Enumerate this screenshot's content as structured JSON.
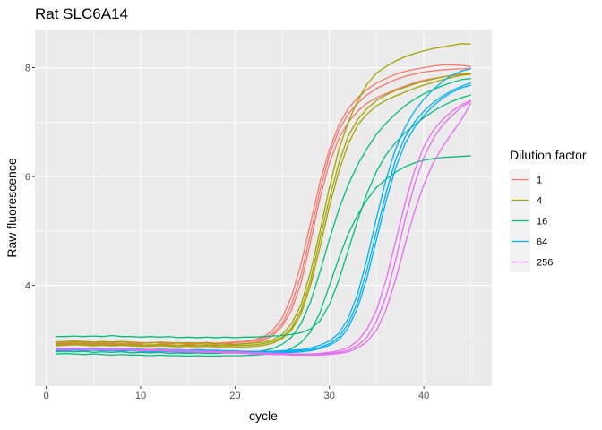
{
  "chart_data": {
    "type": "line",
    "title": "Rat SLC6A14",
    "xlabel": "cycle",
    "ylabel": "Raw fluorescence",
    "xlim": [
      -1.2,
      47.2
    ],
    "ylim": [
      2.15,
      8.7
    ],
    "x_ticks": [
      0,
      10,
      20,
      30,
      40
    ],
    "y_ticks": [
      4,
      6,
      8
    ],
    "grid": true,
    "legend": {
      "title": "Dilution factor",
      "position": "right",
      "entries": [
        {
          "label": "1",
          "color": "#F8766D"
        },
        {
          "label": "4",
          "color": "#A3A500"
        },
        {
          "label": "16",
          "color": "#00BF7D"
        },
        {
          "label": "64",
          "color": "#00B0F6"
        },
        {
          "label": "256",
          "color": "#E76BF3"
        }
      ]
    },
    "series": [
      {
        "group": "1",
        "color": "#F8766D",
        "values": [
          2.93,
          2.94,
          2.96,
          2.95,
          2.93,
          2.95,
          2.94,
          2.96,
          2.94,
          2.93,
          2.95,
          2.94,
          2.93,
          2.94,
          2.92,
          2.93,
          2.94,
          2.92,
          2.93,
          2.95,
          2.96,
          2.98,
          3.02,
          3.12,
          3.3,
          3.65,
          4.2,
          4.95,
          5.75,
          6.4,
          6.85,
          7.15,
          7.35,
          7.5,
          7.62,
          7.7,
          7.78,
          7.84,
          7.88,
          7.92,
          7.94,
          7.96,
          7.97,
          7.98,
          7.99
        ]
      },
      {
        "group": "1",
        "color": "#F8766D",
        "values": [
          2.95,
          2.96,
          2.97,
          2.96,
          2.95,
          2.96,
          2.95,
          2.96,
          2.95,
          2.94,
          2.95,
          2.95,
          2.94,
          2.95,
          2.94,
          2.94,
          2.95,
          2.94,
          2.95,
          2.96,
          2.97,
          3.0,
          3.05,
          3.18,
          3.4,
          3.8,
          4.4,
          5.15,
          5.9,
          6.5,
          6.95,
          7.25,
          7.45,
          7.6,
          7.72,
          7.8,
          7.88,
          7.93,
          7.97,
          8.0,
          8.03,
          8.05,
          8.05,
          8.04,
          8.02
        ]
      },
      {
        "group": "1",
        "color": "#F8766D",
        "values": [
          2.9,
          2.91,
          2.92,
          2.91,
          2.9,
          2.91,
          2.9,
          2.92,
          2.91,
          2.9,
          2.91,
          2.9,
          2.89,
          2.9,
          2.89,
          2.9,
          2.9,
          2.89,
          2.9,
          2.91,
          2.93,
          2.95,
          2.99,
          3.08,
          3.25,
          3.55,
          4.05,
          4.8,
          5.6,
          6.25,
          6.7,
          7.0,
          7.2,
          7.35,
          7.45,
          7.52,
          7.6,
          7.66,
          7.72,
          7.77,
          7.8,
          7.83,
          7.85,
          7.87,
          7.88
        ]
      },
      {
        "group": "4",
        "color": "#A3A500",
        "values": [
          2.96,
          2.97,
          2.98,
          2.97,
          2.96,
          2.97,
          2.96,
          2.97,
          2.96,
          2.95,
          2.94,
          2.96,
          2.95,
          2.94,
          2.95,
          2.94,
          2.95,
          2.93,
          2.92,
          2.92,
          2.93,
          2.94,
          2.96,
          3.0,
          3.1,
          3.3,
          3.65,
          4.25,
          5.0,
          5.8,
          6.5,
          7.0,
          7.4,
          7.7,
          7.9,
          8.02,
          8.12,
          8.2,
          8.26,
          8.31,
          8.35,
          8.38,
          8.41,
          8.44,
          8.43
        ]
      },
      {
        "group": "4",
        "color": "#A3A500",
        "values": [
          2.92,
          2.93,
          2.94,
          2.93,
          2.92,
          2.93,
          2.92,
          2.93,
          2.92,
          2.91,
          2.9,
          2.92,
          2.91,
          2.9,
          2.91,
          2.9,
          2.91,
          2.9,
          2.89,
          2.89,
          2.9,
          2.91,
          2.93,
          2.97,
          3.05,
          3.22,
          3.55,
          4.1,
          4.85,
          5.6,
          6.25,
          6.75,
          7.05,
          7.25,
          7.4,
          7.5,
          7.58,
          7.64,
          7.7,
          7.75,
          7.79,
          7.83,
          7.86,
          7.89,
          7.9
        ]
      },
      {
        "group": "4",
        "color": "#A3A500",
        "values": [
          2.89,
          2.9,
          2.91,
          2.9,
          2.89,
          2.9,
          2.89,
          2.9,
          2.89,
          2.88,
          2.88,
          2.89,
          2.88,
          2.87,
          2.88,
          2.87,
          2.88,
          2.87,
          2.86,
          2.86,
          2.87,
          2.88,
          2.9,
          2.94,
          3.02,
          3.18,
          3.48,
          4.0,
          4.7,
          5.45,
          6.1,
          6.6,
          6.95,
          7.15,
          7.3,
          7.4,
          7.48,
          7.55,
          7.62,
          7.68,
          7.73,
          7.78,
          7.82,
          7.86,
          7.88
        ]
      },
      {
        "group": "16",
        "color": "#00BF7D",
        "values": [
          3.06,
          3.06,
          3.07,
          3.06,
          3.07,
          3.06,
          3.08,
          3.06,
          3.06,
          3.05,
          3.06,
          3.05,
          3.06,
          3.04,
          3.05,
          3.04,
          3.05,
          3.04,
          3.05,
          3.04,
          3.05,
          3.05,
          3.06,
          3.07,
          3.08,
          3.1,
          3.13,
          3.2,
          3.35,
          3.65,
          4.1,
          4.65,
          5.2,
          5.7,
          6.1,
          6.4,
          6.62,
          6.8,
          6.95,
          7.08,
          7.2,
          7.3,
          7.38,
          7.45,
          7.5
        ]
      },
      {
        "group": "16",
        "color": "#00BF7D",
        "values": [
          2.78,
          2.79,
          2.78,
          2.79,
          2.77,
          2.78,
          2.77,
          2.78,
          2.76,
          2.77,
          2.76,
          2.77,
          2.75,
          2.76,
          2.75,
          2.76,
          2.75,
          2.75,
          2.76,
          2.76,
          2.77,
          2.78,
          2.8,
          2.84,
          2.92,
          3.05,
          3.3,
          3.7,
          4.25,
          4.85,
          5.4,
          5.85,
          6.22,
          6.52,
          6.78,
          6.98,
          7.15,
          7.3,
          7.42,
          7.52,
          7.6,
          7.67,
          7.73,
          7.78,
          7.8
        ]
      },
      {
        "group": "16",
        "color": "#00BF7D",
        "values": [
          2.74,
          2.75,
          2.74,
          2.73,
          2.74,
          2.73,
          2.72,
          2.73,
          2.72,
          2.72,
          2.71,
          2.72,
          2.71,
          2.71,
          2.7,
          2.71,
          2.7,
          2.7,
          2.71,
          2.71,
          2.71,
          2.72,
          2.73,
          2.75,
          2.78,
          2.84,
          2.95,
          3.15,
          3.5,
          4.0,
          4.5,
          4.95,
          5.3,
          5.58,
          5.8,
          5.95,
          6.08,
          6.18,
          6.25,
          6.3,
          6.33,
          6.35,
          6.36,
          6.37,
          6.38
        ]
      },
      {
        "group": "64",
        "color": "#00B0F6",
        "values": [
          2.84,
          2.84,
          2.85,
          2.84,
          2.85,
          2.84,
          2.84,
          2.83,
          2.84,
          2.83,
          2.82,
          2.83,
          2.82,
          2.82,
          2.81,
          2.82,
          2.81,
          2.81,
          2.8,
          2.8,
          2.79,
          2.79,
          2.79,
          2.79,
          2.8,
          2.81,
          2.82,
          2.85,
          2.9,
          2.98,
          3.12,
          3.4,
          3.85,
          4.5,
          5.25,
          5.95,
          6.5,
          6.9,
          7.2,
          7.42,
          7.6,
          7.75,
          7.86,
          7.94,
          7.98
        ]
      },
      {
        "group": "64",
        "color": "#00B0F6",
        "values": [
          2.82,
          2.82,
          2.83,
          2.82,
          2.83,
          2.82,
          2.82,
          2.81,
          2.82,
          2.81,
          2.8,
          2.81,
          2.8,
          2.8,
          2.79,
          2.8,
          2.79,
          2.79,
          2.78,
          2.78,
          2.78,
          2.78,
          2.78,
          2.78,
          2.78,
          2.79,
          2.8,
          2.82,
          2.86,
          2.93,
          3.05,
          3.3,
          3.7,
          4.3,
          5.0,
          5.7,
          6.3,
          6.72,
          7.0,
          7.2,
          7.36,
          7.48,
          7.58,
          7.66,
          7.72
        ]
      },
      {
        "group": "64",
        "color": "#00B0F6",
        "values": [
          2.8,
          2.8,
          2.81,
          2.8,
          2.81,
          2.8,
          2.8,
          2.79,
          2.8,
          2.79,
          2.78,
          2.79,
          2.78,
          2.78,
          2.77,
          2.78,
          2.77,
          2.77,
          2.76,
          2.76,
          2.76,
          2.76,
          2.76,
          2.76,
          2.76,
          2.77,
          2.78,
          2.8,
          2.84,
          2.9,
          3.0,
          3.22,
          3.6,
          4.15,
          4.85,
          5.55,
          6.15,
          6.6,
          6.9,
          7.12,
          7.3,
          7.44,
          7.55,
          7.63,
          7.68
        ]
      },
      {
        "group": "256",
        "color": "#E76BF3",
        "values": [
          2.84,
          2.84,
          2.85,
          2.84,
          2.84,
          2.84,
          2.83,
          2.84,
          2.83,
          2.82,
          2.82,
          2.82,
          2.81,
          2.81,
          2.8,
          2.8,
          2.79,
          2.79,
          2.78,
          2.78,
          2.77,
          2.76,
          2.76,
          2.75,
          2.75,
          2.74,
          2.74,
          2.74,
          2.74,
          2.75,
          2.77,
          2.81,
          2.9,
          3.05,
          3.35,
          3.8,
          4.45,
          5.2,
          5.85,
          6.35,
          6.7,
          6.95,
          7.12,
          7.28,
          7.38
        ]
      },
      {
        "group": "256",
        "color": "#E76BF3",
        "values": [
          2.83,
          2.83,
          2.84,
          2.83,
          2.83,
          2.83,
          2.82,
          2.83,
          2.82,
          2.81,
          2.81,
          2.81,
          2.8,
          2.8,
          2.79,
          2.79,
          2.78,
          2.78,
          2.77,
          2.77,
          2.76,
          2.75,
          2.75,
          2.74,
          2.74,
          2.74,
          2.74,
          2.74,
          2.75,
          2.77,
          2.8,
          2.86,
          2.98,
          3.2,
          3.55,
          4.1,
          4.8,
          5.5,
          6.1,
          6.55,
          6.85,
          7.05,
          7.2,
          7.32,
          7.4
        ]
      },
      {
        "group": "256",
        "color": "#E76BF3",
        "values": [
          2.82,
          2.82,
          2.83,
          2.82,
          2.82,
          2.82,
          2.81,
          2.82,
          2.81,
          2.8,
          2.8,
          2.8,
          2.79,
          2.79,
          2.78,
          2.78,
          2.77,
          2.77,
          2.76,
          2.76,
          2.75,
          2.74,
          2.74,
          2.73,
          2.73,
          2.72,
          2.72,
          2.72,
          2.72,
          2.73,
          2.75,
          2.78,
          2.85,
          2.97,
          3.18,
          3.55,
          4.1,
          4.75,
          5.35,
          5.85,
          6.25,
          6.55,
          6.8,
          7.05,
          7.35
        ]
      }
    ]
  }
}
